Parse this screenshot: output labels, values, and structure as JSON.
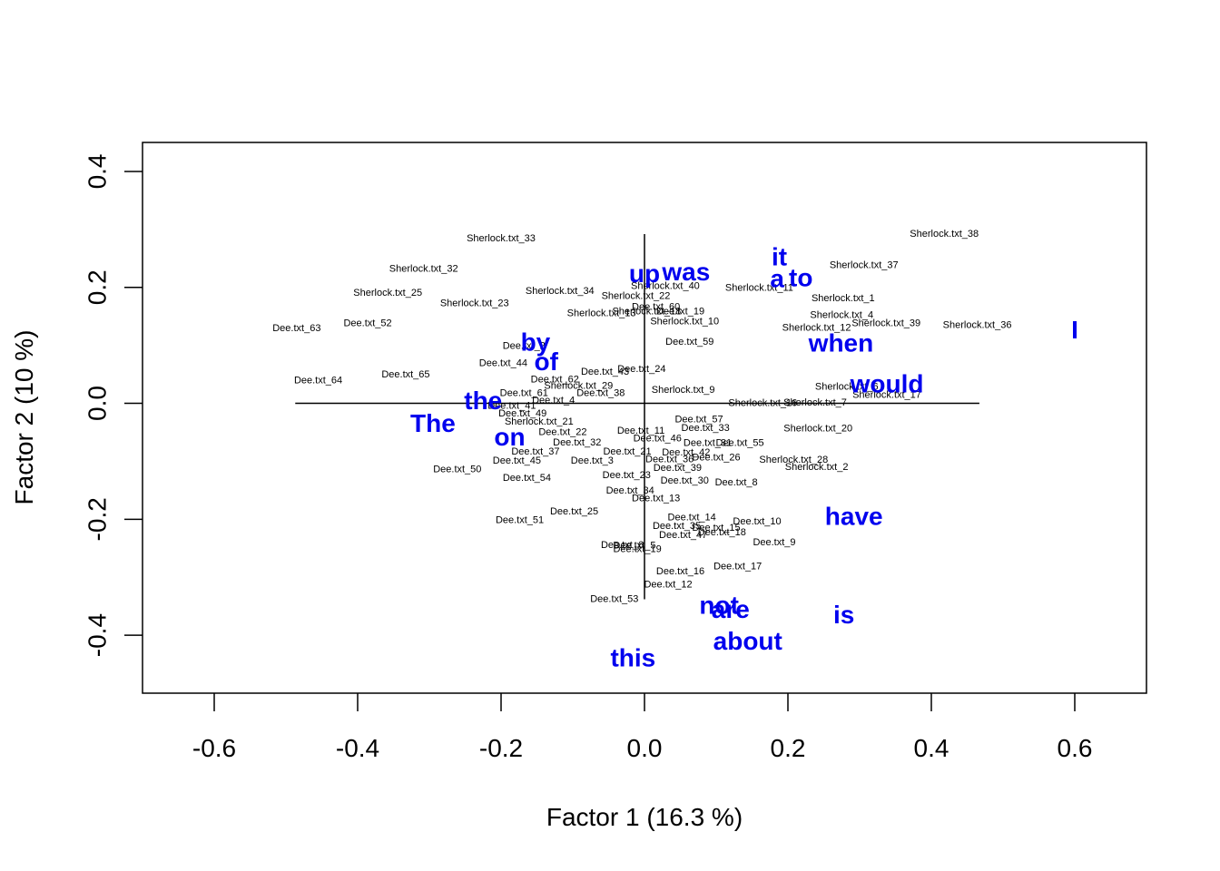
{
  "chart_data": {
    "type": "scatter",
    "title": "",
    "xlabel": "Factor 1  (16.3 %)",
    "ylabel": "Factor 2  (10 %)",
    "xlim": [
      -0.7,
      0.7
    ],
    "ylim": [
      -0.5,
      0.45
    ],
    "x_ticks": [
      -0.6,
      -0.4,
      -0.2,
      0.0,
      0.2,
      0.4,
      0.6
    ],
    "x_tick_labels": [
      "-0.6",
      "-0.4",
      "-0.2",
      "0.0",
      "0.2",
      "0.4",
      "0.6"
    ],
    "y_ticks": [
      -0.4,
      -0.2,
      0.0,
      0.2,
      0.4
    ],
    "y_tick_labels": [
      "-0.4",
      "-0.2",
      "0.0",
      "0.2",
      "0.4"
    ],
    "grid": false,
    "word_color": "#0000ee",
    "doc_color": "#000000",
    "axes_cross": {
      "x_range": [
        -0.487,
        0.467
      ],
      "y_range": [
        -0.338,
        0.292
      ]
    },
    "documents": [
      {
        "label": "Sherlock.txt_33",
        "x": -0.2,
        "y": 0.284
      },
      {
        "label": "Sherlock.txt_38",
        "x": 0.418,
        "y": 0.292
      },
      {
        "label": "Sherlock.txt_32",
        "x": -0.308,
        "y": 0.232
      },
      {
        "label": "Sherlock.txt_37",
        "x": 0.306,
        "y": 0.238
      },
      {
        "label": "Sherlock.txt_25",
        "x": -0.358,
        "y": 0.19
      },
      {
        "label": "Sherlock.txt_23",
        "x": -0.237,
        "y": 0.172
      },
      {
        "label": "Sherlock.txt_1",
        "x": 0.277,
        "y": 0.181
      },
      {
        "label": "Sherlock.txt_4",
        "x": 0.275,
        "y": 0.152
      },
      {
        "label": "Sherlock.txt_39",
        "x": 0.337,
        "y": 0.138
      },
      {
        "label": "Sherlock.txt_36",
        "x": 0.464,
        "y": 0.135
      },
      {
        "label": "Sherlock.txt_40",
        "x": 0.029,
        "y": 0.202
      },
      {
        "label": "Sherlock.txt_22",
        "x": -0.012,
        "y": 0.185
      },
      {
        "label": "Sherlock.txt_11",
        "x": 0.16,
        "y": 0.199
      },
      {
        "label": "Sherlock.txt_10",
        "x": 0.056,
        "y": 0.141
      },
      {
        "label": "Sherlock.txt_9",
        "x": 0.054,
        "y": 0.023
      },
      {
        "label": "Sherlock.txt_7",
        "x": 0.238,
        "y": 0.001
      },
      {
        "label": "Sherlock.txt_17",
        "x": 0.338,
        "y": 0.014
      },
      {
        "label": "Sherlock.txt_20",
        "x": 0.242,
        "y": -0.044
      },
      {
        "label": "Sherlock.txt_28",
        "x": 0.208,
        "y": -0.098
      },
      {
        "label": "Sherlock.txt_2",
        "x": 0.24,
        "y": -0.11
      },
      {
        "label": "Sherlock.txt_29",
        "x": -0.092,
        "y": 0.03
      },
      {
        "label": "Sherlock.txt_21",
        "x": -0.147,
        "y": -0.032
      },
      {
        "label": "Sherlock.txt_34",
        "x": -0.118,
        "y": 0.193
      },
      {
        "label": "Sherlock.txt_13",
        "x": -0.06,
        "y": 0.155
      },
      {
        "label": "Sherlock.txt_18",
        "x": 0.003,
        "y": 0.158
      },
      {
        "label": "Sherlock.txt_12",
        "x": 0.24,
        "y": 0.13
      },
      {
        "label": "Sherlock.txt_6",
        "x": 0.282,
        "y": 0.028
      },
      {
        "label": "Sherlock.txt_16",
        "x": 0.165,
        "y": 0.0
      },
      {
        "label": "Dee.txt_63",
        "x": -0.485,
        "y": 0.129
      },
      {
        "label": "Dee.txt_52",
        "x": -0.386,
        "y": 0.138
      },
      {
        "label": "Dee.txt_64",
        "x": -0.455,
        "y": 0.039
      },
      {
        "label": "Dee.txt_65",
        "x": -0.333,
        "y": 0.049
      },
      {
        "label": "Dee.txt_2",
        "x": -0.168,
        "y": 0.099
      },
      {
        "label": "Dee.txt_44",
        "x": -0.197,
        "y": 0.069
      },
      {
        "label": "Dee.txt_43",
        "x": -0.055,
        "y": 0.054
      },
      {
        "label": "Dee.txt_24",
        "x": -0.004,
        "y": 0.059
      },
      {
        "label": "Dee.txt_62",
        "x": -0.125,
        "y": 0.041
      },
      {
        "label": "Dee.txt_61",
        "x": -0.168,
        "y": 0.017
      },
      {
        "label": "Dee.txt_38",
        "x": -0.061,
        "y": 0.017
      },
      {
        "label": "Dee.txt_4",
        "x": -0.127,
        "y": 0.005
      },
      {
        "label": "Dee.txt_41",
        "x": -0.185,
        "y": -0.005
      },
      {
        "label": "Dee.txt_49",
        "x": -0.17,
        "y": -0.018
      },
      {
        "label": "Dee.txt_59",
        "x": 0.063,
        "y": 0.106
      },
      {
        "label": "Dee.txt_60",
        "x": 0.016,
        "y": 0.166
      },
      {
        "label": "Dee.txt_19",
        "x": 0.05,
        "y": 0.158
      },
      {
        "label": "Dee.txt_57",
        "x": 0.076,
        "y": -0.028
      },
      {
        "label": "Dee.txt_33",
        "x": 0.085,
        "y": -0.043
      },
      {
        "label": "Dee.txt_11",
        "x": -0.005,
        "y": -0.048
      },
      {
        "label": "Dee.txt_46",
        "x": 0.018,
        "y": -0.061
      },
      {
        "label": "Dee.txt_22",
        "x": -0.114,
        "y": -0.05
      },
      {
        "label": "Dee.txt_32",
        "x": -0.094,
        "y": -0.068
      },
      {
        "label": "Dee.txt_37",
        "x": -0.152,
        "y": -0.084
      },
      {
        "label": "Dee.txt_45",
        "x": -0.178,
        "y": -0.099
      },
      {
        "label": "Dee.txt_50",
        "x": -0.261,
        "y": -0.114
      },
      {
        "label": "Dee.txt_54",
        "x": -0.164,
        "y": -0.129
      },
      {
        "label": "Dee.txt_3",
        "x": -0.073,
        "y": -0.099
      },
      {
        "label": "Dee.txt_21",
        "x": -0.024,
        "y": -0.084
      },
      {
        "label": "Dee.txt_31",
        "x": 0.088,
        "y": -0.069
      },
      {
        "label": "Dee.txt_55",
        "x": 0.133,
        "y": -0.069
      },
      {
        "label": "Dee.txt_42",
        "x": 0.058,
        "y": -0.085
      },
      {
        "label": "Dee.txt_26",
        "x": 0.1,
        "y": -0.094
      },
      {
        "label": "Dee.txt_36",
        "x": 0.035,
        "y": -0.097
      },
      {
        "label": "Dee.txt_39",
        "x": 0.046,
        "y": -0.112
      },
      {
        "label": "Dee.txt_23",
        "x": -0.025,
        "y": -0.124
      },
      {
        "label": "Dee.txt_30",
        "x": 0.056,
        "y": -0.134
      },
      {
        "label": "Dee.txt_8",
        "x": 0.128,
        "y": -0.137
      },
      {
        "label": "Dee.txt_34",
        "x": -0.02,
        "y": -0.151
      },
      {
        "label": "Dee.txt_13",
        "x": 0.016,
        "y": -0.164
      },
      {
        "label": "Dee.txt_25",
        "x": -0.098,
        "y": -0.187
      },
      {
        "label": "Dee.txt_51",
        "x": -0.174,
        "y": -0.202
      },
      {
        "label": "Dee.txt_14",
        "x": 0.066,
        "y": -0.197
      },
      {
        "label": "Dee.txt_10",
        "x": 0.157,
        "y": -0.204
      },
      {
        "label": "Dee.txt_35",
        "x": 0.045,
        "y": -0.212
      },
      {
        "label": "Dee.txt_15",
        "x": 0.1,
        "y": -0.215
      },
      {
        "label": "Dee.txt_18",
        "x": 0.108,
        "y": -0.223
      },
      {
        "label": "Dee.txt_47",
        "x": 0.054,
        "y": -0.228
      },
      {
        "label": "Dee.txt_9",
        "x": 0.181,
        "y": -0.24
      },
      {
        "label": "Dee.txt_6",
        "x": -0.031,
        "y": -0.245
      },
      {
        "label": "Dee.txt_5",
        "x": -0.014,
        "y": -0.246
      },
      {
        "label": "Dee.txt_19",
        "x": -0.01,
        "y": -0.252
      },
      {
        "label": "Dee.txt_17",
        "x": 0.13,
        "y": -0.282
      },
      {
        "label": "Dee.txt_16",
        "x": 0.05,
        "y": -0.29
      },
      {
        "label": "Dee.txt_12",
        "x": 0.033,
        "y": -0.313
      },
      {
        "label": "Dee.txt_53",
        "x": -0.042,
        "y": -0.338
      }
    ],
    "words": [
      {
        "label": "up",
        "x": 0.0,
        "y": 0.224
      },
      {
        "label": "was",
        "x": 0.058,
        "y": 0.227
      },
      {
        "label": "it",
        "x": 0.188,
        "y": 0.253
      },
      {
        "label": "a",
        "x": 0.185,
        "y": 0.215
      },
      {
        "label": "to",
        "x": 0.218,
        "y": 0.217
      },
      {
        "label": "I",
        "x": 0.6,
        "y": 0.127
      },
      {
        "label": "when",
        "x": 0.274,
        "y": 0.104
      },
      {
        "label": "would",
        "x": 0.338,
        "y": 0.034
      },
      {
        "label": "by",
        "x": -0.152,
        "y": 0.106
      },
      {
        "label": "of",
        "x": -0.137,
        "y": 0.072
      },
      {
        "label": "the",
        "x": -0.225,
        "y": 0.005
      },
      {
        "label": "The",
        "x": -0.295,
        "y": -0.034
      },
      {
        "label": "on",
        "x": -0.188,
        "y": -0.058
      },
      {
        "label": "have",
        "x": 0.292,
        "y": -0.195
      },
      {
        "label": "not",
        "x": 0.104,
        "y": -0.348
      },
      {
        "label": "are",
        "x": 0.12,
        "y": -0.355
      },
      {
        "label": "is",
        "x": 0.278,
        "y": -0.365
      },
      {
        "label": "about",
        "x": 0.144,
        "y": -0.41
      },
      {
        "label": "this",
        "x": -0.016,
        "y": -0.439
      }
    ]
  }
}
